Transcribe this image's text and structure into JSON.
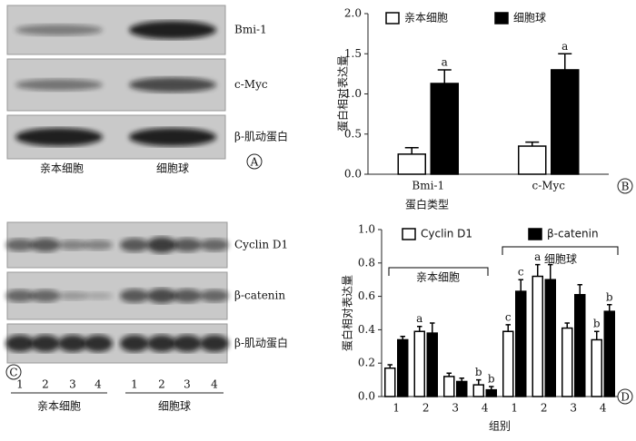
{
  "blot_a": {
    "bands": [
      "Bmi-1",
      "c-Myc",
      "β-肌动蛋白"
    ],
    "groups": [
      "亲本细胞",
      "细胞球"
    ],
    "panel": "A"
  },
  "blot_c": {
    "bands": [
      "Cyclin D1",
      "β-catenin",
      "β-肌动蛋白"
    ],
    "lanes": [
      "1",
      "2",
      "3",
      "4",
      "1",
      "2",
      "3",
      "4"
    ],
    "groups": [
      "亲本细胞",
      "细胞球"
    ],
    "panel": "C"
  },
  "chart_data": [
    {
      "type": "bar",
      "panel": "B",
      "y_label": "蛋白相对表达量",
      "x_label": "蛋白类型",
      "categories": [
        "Bmi-1",
        "c-Myc"
      ],
      "series": [
        {
          "name": "亲本细胞",
          "color": "#ffffff",
          "values": [
            0.25,
            0.35
          ],
          "errors": [
            0.08,
            0.05
          ],
          "labels": [
            null,
            null
          ]
        },
        {
          "name": "细胞球",
          "color": "#000000",
          "values": [
            1.13,
            1.3
          ],
          "errors": [
            0.17,
            0.2
          ],
          "labels": [
            "a",
            "a"
          ]
        }
      ],
      "ylim": [
        0,
        2
      ],
      "yticks": [
        {
          "value": 0,
          "label": "0.0"
        },
        0.5,
        {
          "value": 1,
          "label": "1.0"
        },
        1.5,
        {
          "value": 2,
          "label": "2.0"
        }
      ]
    },
    {
      "type": "bar",
      "panel": "D",
      "y_label": "蛋白相对表达量",
      "x_label": "组别",
      "categories": [
        "1",
        "2",
        "3",
        "4",
        "1",
        "2",
        "3",
        "4"
      ],
      "group_labels": [
        "亲本细胞",
        "细胞球"
      ],
      "series": [
        {
          "name": "Cyclin D1",
          "color": "#ffffff",
          "values": [
            0.17,
            0.39,
            0.12,
            0.07,
            0.39,
            0.72,
            0.41,
            0.34
          ],
          "errors": [
            0.02,
            0.03,
            0.02,
            0.03,
            0.04,
            0.07,
            0.03,
            0.05
          ],
          "labels": [
            null,
            "a",
            null,
            "b",
            "c",
            "a",
            null,
            "b"
          ]
        },
        {
          "name": "β-catenin",
          "color": "#000000",
          "values": [
            0.34,
            0.38,
            0.09,
            0.04,
            0.63,
            0.7,
            0.61,
            0.51
          ],
          "errors": [
            0.02,
            0.06,
            0.02,
            0.02,
            0.07,
            0.09,
            0.06,
            0.04
          ],
          "labels": [
            null,
            null,
            null,
            "b",
            "c",
            null,
            null,
            "b"
          ]
        }
      ],
      "ylim": [
        0,
        1
      ],
      "yticks": [
        {
          "value": 0,
          "label": "0.0"
        },
        0.2,
        0.4,
        0.6,
        0.8,
        {
          "value": 1,
          "label": "1.0"
        }
      ]
    }
  ]
}
